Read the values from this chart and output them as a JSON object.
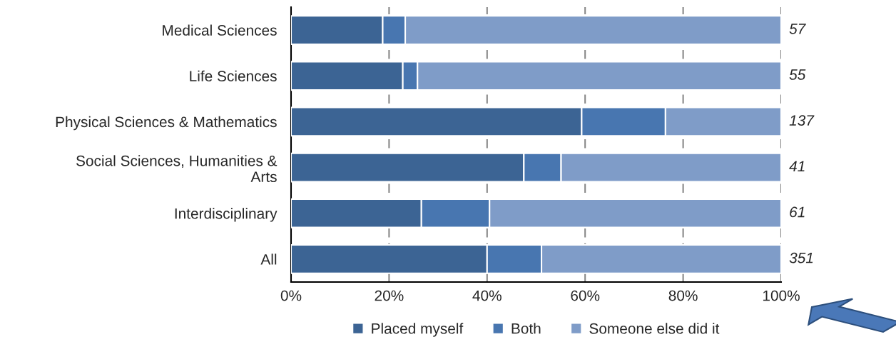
{
  "chart_data": {
    "type": "bar",
    "orientation": "horizontal",
    "stacked": true,
    "categories": [
      "Medical Sciences",
      "Life Sciences",
      "Physical Sciences & Mathematics",
      "Social Sciences, Humanities &\nArts",
      "Interdisciplinary",
      "All"
    ],
    "series": [
      {
        "name": "Placed myself",
        "color": "#3c6494",
        "values": [
          18.7,
          22.8,
          59.3,
          47.5,
          26.6,
          40.0
        ]
      },
      {
        "name": "Both",
        "color": "#4876b0",
        "values": [
          4.6,
          3.0,
          17.1,
          7.6,
          13.9,
          11.1
        ]
      },
      {
        "name": "Someone else did it",
        "color": "#7f9cc8",
        "values": [
          76.7,
          74.2,
          23.6,
          44.9,
          59.5,
          48.9
        ]
      }
    ],
    "xlim": [
      0,
      100
    ],
    "xticks": [
      {
        "value": 0,
        "label": "0%"
      },
      {
        "value": 20,
        "label": "20%"
      },
      {
        "value": 40,
        "label": "40%"
      },
      {
        "value": 60,
        "label": "60%"
      },
      {
        "value": 80,
        "label": "80%"
      },
      {
        "value": 100,
        "label": "100%"
      }
    ],
    "grid": "x",
    "legend": "bottom",
    "annotations": [
      "57",
      "55",
      "137",
      "41",
      "61",
      "351"
    ]
  }
}
